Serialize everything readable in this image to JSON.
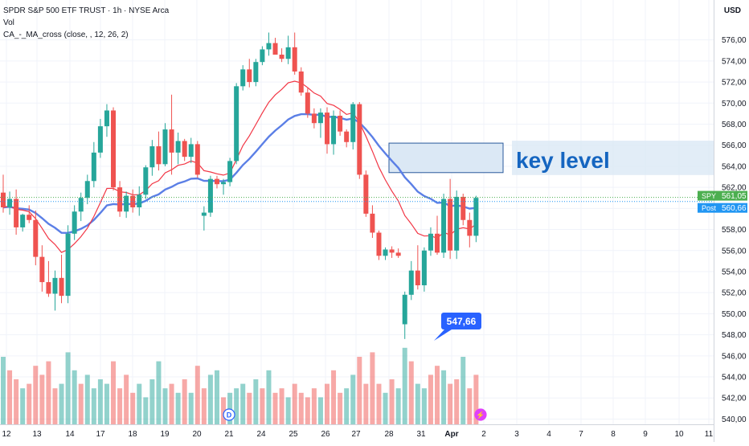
{
  "header": {
    "title": "SPDR S&P 500 ETF TRUST · 1h · NYSE Arca",
    "vol_label": "Vol",
    "indicator_label": "CA_-_MA_cross (close, , 12, 26, 2)",
    "currency": "USD"
  },
  "colors": {
    "up": "#26a69a",
    "down": "#ef5350",
    "ma_fast": "#f23645",
    "ma_slow": "#5b7fe6",
    "box_fill": "#dbe8f5",
    "box_border": "#2a5a9c",
    "label_text": "#1565c0",
    "tag_blue": "#2962ff",
    "spy_tag": "#4caf50",
    "post_tag": "#2196f3"
  },
  "chart_data": {
    "type": "candlestick",
    "ylim": [
      539.5,
      577.5
    ],
    "y_ticks": [
      "576,00",
      "574,00",
      "572,00",
      "570,00",
      "568,00",
      "566,00",
      "564,00",
      "562,00",
      "560,00",
      "558,00",
      "556,00",
      "554,00",
      "552,00",
      "550,00",
      "548,00",
      "546,00",
      "544,00",
      "542,00",
      "540,00"
    ],
    "x_tick_labels": [
      "12",
      "13",
      "14",
      "17",
      "18",
      "19",
      "20",
      "21",
      "24",
      "25",
      "26",
      "27",
      "28",
      "31",
      "Apr",
      "2",
      "3",
      "4",
      "7",
      "8",
      "9",
      "10",
      "11"
    ],
    "last_price": {
      "label": "SPY",
      "value": "561,05"
    },
    "post_price": {
      "label": "Post",
      "value": "560,66"
    },
    "low_callout": "547,66",
    "annotation": "key level",
    "zone": [
      563.4,
      566.2
    ],
    "event_markers": [
      {
        "label": "D"
      },
      {
        "label": "⚡"
      }
    ],
    "candles": [
      [
        561.5,
        563.2,
        559.6,
        560.1
      ],
      [
        560.1,
        561.6,
        559.4,
        560.9
      ],
      [
        560.9,
        561.8,
        557.5,
        558.2
      ],
      [
        558.2,
        559.5,
        557.8,
        559.4
      ],
      [
        559.4,
        560.3,
        558.6,
        558.9
      ],
      [
        558.9,
        559.8,
        554.6,
        555.4
      ],
      [
        555.4,
        556.5,
        552.1,
        553.0
      ],
      [
        553.0,
        555.0,
        551.6,
        551.9
      ],
      [
        551.9,
        554.1,
        550.3,
        553.4
      ],
      [
        553.4,
        555.6,
        551.0,
        551.7
      ],
      [
        551.7,
        558.4,
        551.0,
        557.6
      ],
      [
        557.6,
        560.3,
        557.0,
        559.7
      ],
      [
        559.7,
        561.5,
        558.8,
        561.0
      ],
      [
        561.0,
        563.2,
        560.4,
        562.6
      ],
      [
        562.6,
        566.3,
        562.0,
        565.3
      ],
      [
        565.3,
        568.5,
        564.8,
        567.8
      ],
      [
        567.8,
        569.9,
        566.8,
        569.3
      ],
      [
        569.3,
        569.6,
        561.7,
        562.0
      ],
      [
        562.0,
        562.6,
        559.2,
        559.7
      ],
      [
        559.7,
        561.6,
        559.1,
        561.2
      ],
      [
        561.2,
        561.8,
        559.6,
        560.1
      ],
      [
        560.1,
        562.1,
        559.3,
        561.3
      ],
      [
        561.3,
        564.1,
        560.9,
        563.9
      ],
      [
        563.9,
        566.5,
        563.1,
        565.9
      ],
      [
        565.9,
        567.3,
        563.6,
        564.2
      ],
      [
        564.2,
        568.1,
        564.0,
        567.5
      ],
      [
        567.5,
        570.8,
        563.2,
        565.3
      ],
      [
        565.3,
        567.2,
        564.2,
        566.4
      ],
      [
        566.4,
        566.6,
        564.5,
        564.9
      ],
      [
        564.9,
        566.7,
        564.3,
        566.1
      ],
      [
        566.1,
        566.4,
        562.9,
        563.2
      ],
      [
        559.3,
        560.2,
        557.9,
        559.6
      ],
      [
        559.6,
        563.1,
        559.2,
        562.8
      ],
      [
        562.8,
        563.1,
        561.9,
        562.3
      ],
      [
        562.3,
        562.8,
        561.3,
        562.5
      ],
      [
        562.5,
        564.8,
        562.1,
        564.5
      ],
      [
        564.5,
        571.9,
        564.2,
        571.6
      ],
      [
        571.6,
        573.6,
        571.2,
        573.2
      ],
      [
        573.2,
        574.2,
        571.5,
        572.0
      ],
      [
        572.0,
        574.2,
        571.6,
        573.9
      ],
      [
        573.9,
        575.4,
        573.6,
        575.1
      ],
      [
        575.1,
        576.7,
        574.5,
        575.7
      ],
      [
        575.7,
        576.2,
        574.8,
        574.6
      ],
      [
        574.6,
        575.2,
        573.9,
        574.2
      ],
      [
        574.2,
        576.4,
        573.7,
        575.3
      ],
      [
        575.3,
        576.7,
        572.7,
        573.0
      ],
      [
        573.0,
        573.4,
        570.7,
        571.0
      ],
      [
        571.0,
        571.4,
        568.6,
        569.0
      ],
      [
        569.0,
        569.5,
        567.6,
        568.1
      ],
      [
        568.1,
        569.5,
        566.7,
        569.1
      ],
      [
        569.1,
        569.6,
        565.2,
        566.1
      ],
      [
        566.1,
        569.3,
        565.1,
        568.8
      ],
      [
        568.8,
        569.3,
        566.9,
        567.3
      ],
      [
        567.3,
        567.5,
        565.8,
        566.3
      ],
      [
        566.3,
        570.1,
        565.6,
        569.9
      ],
      [
        569.9,
        570.1,
        562.8,
        563.2
      ],
      [
        563.2,
        563.6,
        559.2,
        559.5
      ],
      [
        559.5,
        560.3,
        557.2,
        557.7
      ],
      [
        557.7,
        557.9,
        555.1,
        555.5
      ],
      [
        555.5,
        556.3,
        555.1,
        556.1
      ],
      [
        556.1,
        556.4,
        555.3,
        555.8
      ],
      [
        555.8,
        556.2,
        555.3,
        555.5
      ],
      [
        549.0,
        552.1,
        547.6,
        551.8
      ],
      [
        551.8,
        555.0,
        551.3,
        554.1
      ],
      [
        554.1,
        556.5,
        552.3,
        552.7
      ],
      [
        552.7,
        556.3,
        552.1,
        556.0
      ],
      [
        556.0,
        558.2,
        555.5,
        557.6
      ],
      [
        557.6,
        559.3,
        555.6,
        555.8
      ],
      [
        555.8,
        561.4,
        555.3,
        560.9
      ],
      [
        560.9,
        562.8,
        555.2,
        556.0
      ],
      [
        556.0,
        561.7,
        555.2,
        561.1
      ],
      [
        561.1,
        561.4,
        558.4,
        558.9
      ],
      [
        558.9,
        559.6,
        556.3,
        557.4
      ],
      [
        557.4,
        561.2,
        556.8,
        561.0
      ]
    ],
    "volume": [
      [
        15,
        "up"
      ],
      [
        12,
        "down"
      ],
      [
        10,
        "down"
      ],
      [
        8,
        "up"
      ],
      [
        9,
        "down"
      ],
      [
        13,
        "down"
      ],
      [
        11,
        "down"
      ],
      [
        14,
        "down"
      ],
      [
        8,
        "down"
      ],
      [
        9,
        "up"
      ],
      [
        16,
        "up"
      ],
      [
        12,
        "up"
      ],
      [
        9,
        "down"
      ],
      [
        11,
        "up"
      ],
      [
        8,
        "up"
      ],
      [
        10,
        "up"
      ],
      [
        9,
        "up"
      ],
      [
        14,
        "down"
      ],
      [
        8,
        "down"
      ],
      [
        11,
        "down"
      ],
      [
        7,
        "down"
      ],
      [
        9,
        "up"
      ],
      [
        6,
        "up"
      ],
      [
        10,
        "up"
      ],
      [
        14,
        "up"
      ],
      [
        8,
        "up"
      ],
      [
        9,
        "down"
      ],
      [
        7,
        "up"
      ],
      [
        10,
        "down"
      ],
      [
        7,
        "up"
      ],
      [
        13,
        "down"
      ],
      [
        8,
        "down"
      ],
      [
        11,
        "up"
      ],
      [
        12,
        "up"
      ],
      [
        6,
        "down"
      ],
      [
        7,
        "up"
      ],
      [
        8,
        "up"
      ],
      [
        9,
        "up"
      ],
      [
        7,
        "down"
      ],
      [
        10,
        "up"
      ],
      [
        8,
        "down"
      ],
      [
        12,
        "up"
      ],
      [
        7,
        "down"
      ],
      [
        8,
        "down"
      ],
      [
        6,
        "up"
      ],
      [
        9,
        "down"
      ],
      [
        7,
        "down"
      ],
      [
        6,
        "down"
      ],
      [
        8,
        "down"
      ],
      [
        6,
        "up"
      ],
      [
        9,
        "down"
      ],
      [
        12,
        "down"
      ],
      [
        7,
        "down"
      ],
      [
        8,
        "up"
      ],
      [
        11,
        "up"
      ],
      [
        15,
        "down"
      ],
      [
        9,
        "down"
      ],
      [
        16,
        "down"
      ],
      [
        9,
        "down"
      ],
      [
        7,
        "up"
      ],
      [
        10,
        "down"
      ],
      [
        8,
        "up"
      ],
      [
        17,
        "up"
      ],
      [
        14,
        "down"
      ],
      [
        9,
        "up"
      ],
      [
        8,
        "up"
      ],
      [
        11,
        "down"
      ],
      [
        13,
        "down"
      ],
      [
        12,
        "up"
      ],
      [
        9,
        "down"
      ],
      [
        10,
        "down"
      ],
      [
        15,
        "up"
      ],
      [
        8,
        "down"
      ],
      [
        11,
        "down"
      ]
    ]
  }
}
